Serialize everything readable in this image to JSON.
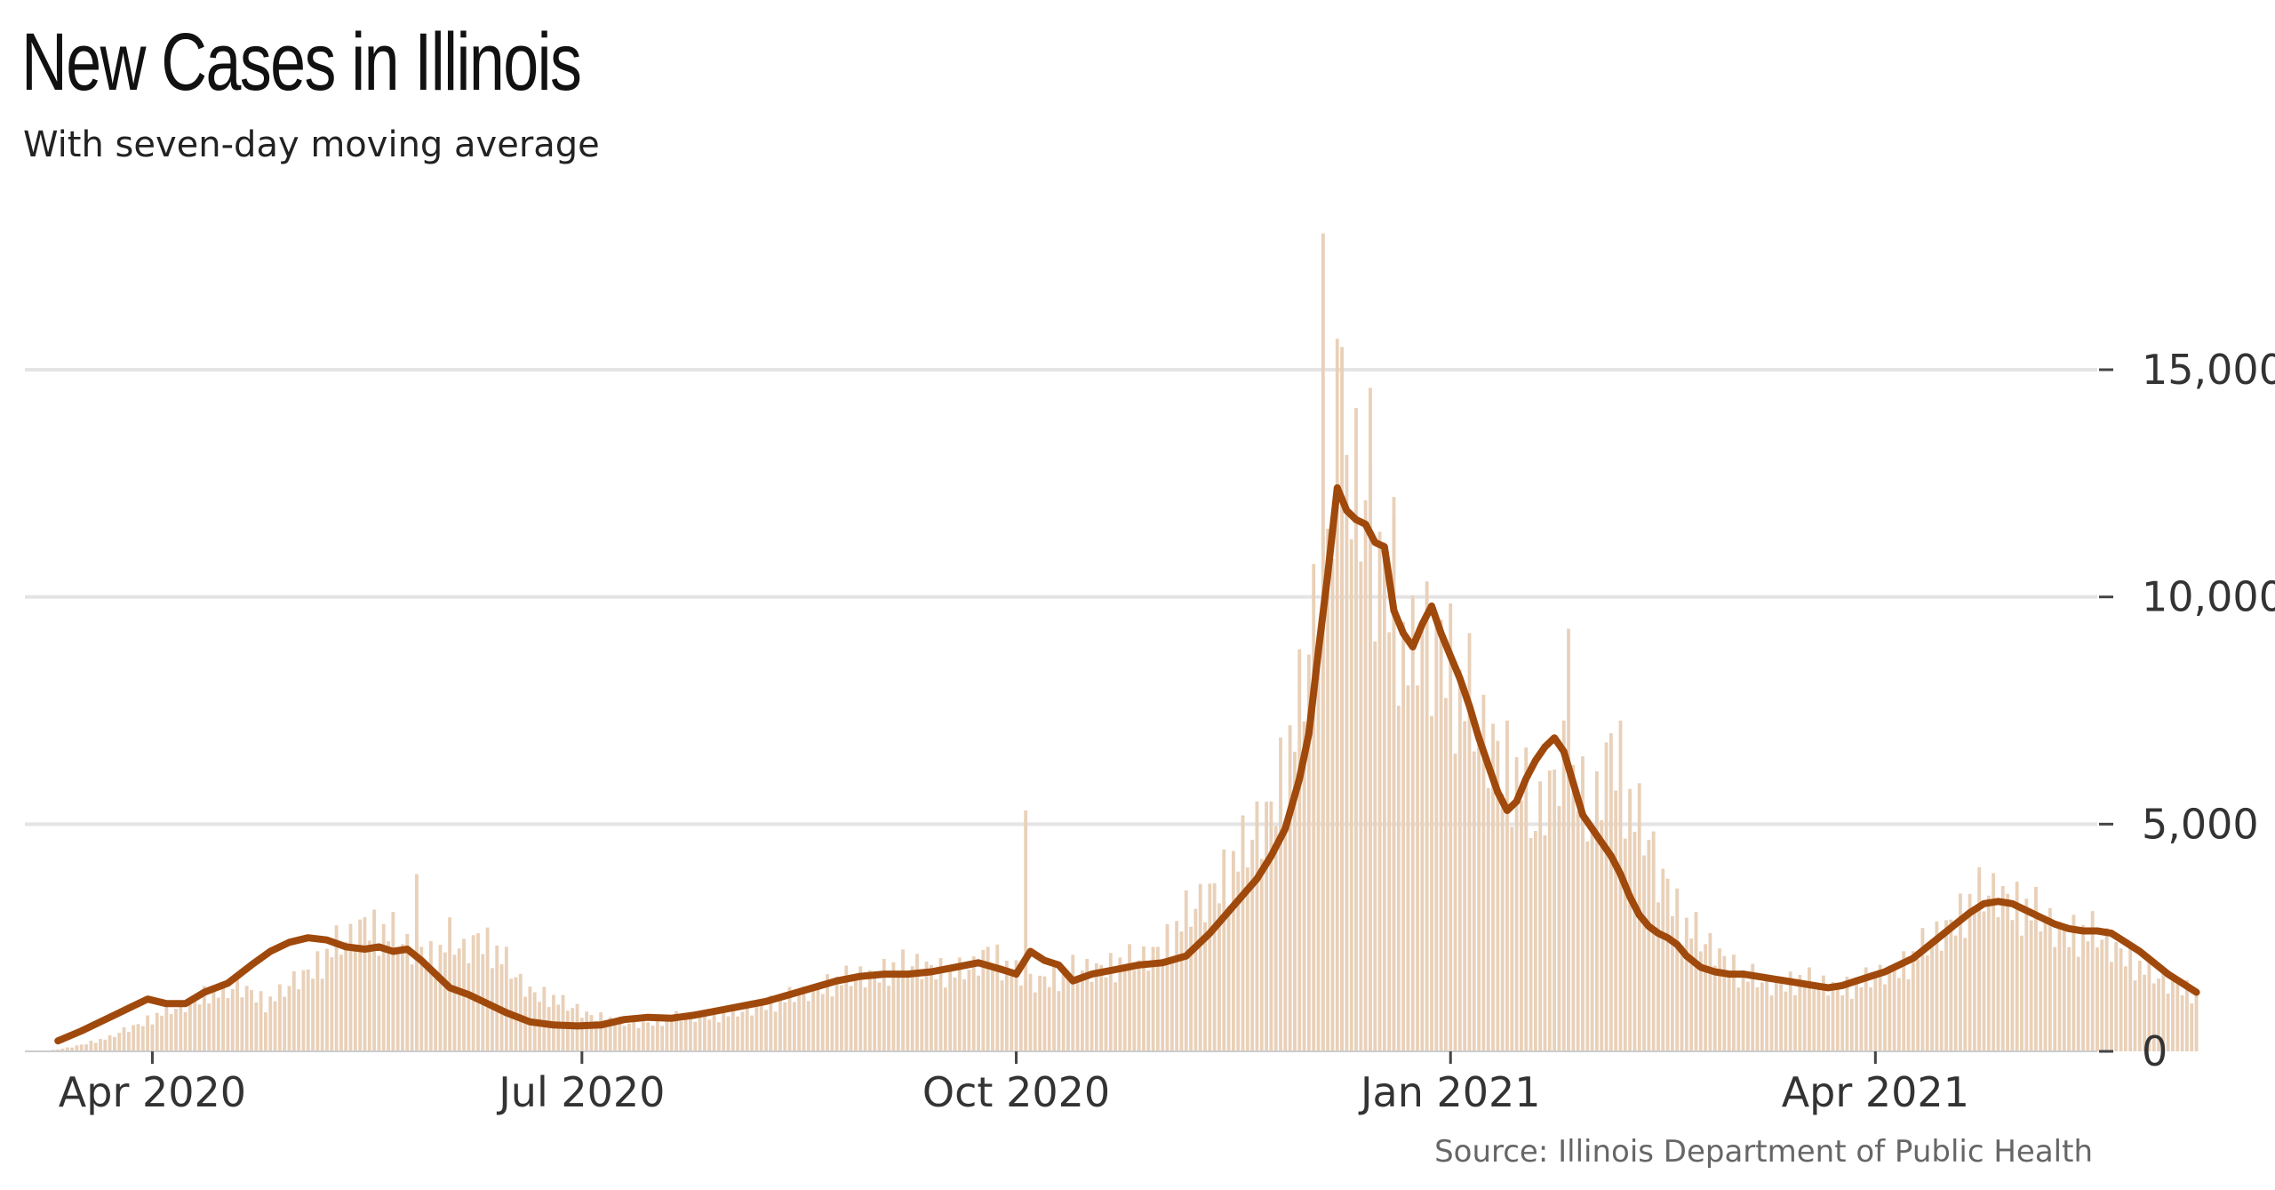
{
  "title": "New Cases in Illinois",
  "subtitle": "With seven-day moving average",
  "source": "Source: Illinois Department of Public Health",
  "colors": {
    "bars": "#e9d0b8",
    "line": "#a0490c",
    "grid": "#e4e4e4",
    "text": "#333333"
  },
  "chart_data": {
    "type": "bar",
    "x_axis": {
      "start": "2020-03-05",
      "end": "2021-05-18",
      "ticks": [
        {
          "date": "2020-04-01",
          "label": "Apr 2020"
        },
        {
          "date": "2020-07-01",
          "label": "Jul 2020"
        },
        {
          "date": "2020-10-01",
          "label": "Oct 2020"
        },
        {
          "date": "2021-01-01",
          "label": "Jan 2021"
        },
        {
          "date": "2021-04-01",
          "label": "Apr 2021"
        }
      ]
    },
    "y_axis": {
      "position": "right",
      "ylim": [
        0,
        18000
      ],
      "ticks": [
        0,
        5000,
        10000,
        15000
      ],
      "tick_labels": [
        "0",
        "5,000",
        "10,000",
        "15,000"
      ]
    },
    "grid": true,
    "series": [
      {
        "kind": "bars",
        "values": [
          [
            5,
            10
          ],
          [
            9,
            80
          ],
          [
            12,
            150
          ],
          [
            15,
            240
          ],
          [
            18,
            300
          ],
          [
            21,
            480
          ],
          [
            24,
            600
          ],
          [
            27,
            760
          ],
          [
            30,
            900
          ],
          [
            33,
            1000
          ],
          [
            36,
            1150
          ],
          [
            39,
            1350
          ],
          [
            42,
            1250
          ],
          [
            45,
            1500
          ],
          [
            48,
            1350
          ],
          [
            51,
            1100
          ],
          [
            54,
            1250
          ],
          [
            57,
            1600
          ],
          [
            60,
            1800
          ],
          [
            63,
            2050
          ],
          [
            66,
            2350
          ],
          [
            69,
            2550
          ],
          [
            72,
            2950
          ],
          [
            75,
            2700
          ],
          [
            78,
            2600
          ],
          [
            81,
            2350
          ],
          [
            84,
            2300
          ],
          [
            87,
            2100
          ],
          [
            90,
            2500
          ],
          [
            93,
            2250
          ],
          [
            96,
            2600
          ],
          [
            99,
            2350
          ],
          [
            102,
            1950
          ],
          [
            105,
            1550
          ],
          [
            108,
            1300
          ],
          [
            111,
            1250
          ],
          [
            114,
            1050
          ],
          [
            117,
            950
          ],
          [
            120,
            800
          ],
          [
            123,
            750
          ],
          [
            126,
            650
          ],
          [
            129,
            620
          ],
          [
            132,
            640
          ],
          [
            135,
            720
          ],
          [
            138,
            750
          ],
          [
            141,
            780
          ],
          [
            144,
            820
          ],
          [
            147,
            820
          ],
          [
            150,
            850
          ],
          [
            153,
            920
          ],
          [
            156,
            1050
          ],
          [
            159,
            1120
          ],
          [
            162,
            1200
          ],
          [
            165,
            1300
          ],
          [
            168,
            1450
          ],
          [
            171,
            1550
          ],
          [
            174,
            1600
          ],
          [
            177,
            1700
          ],
          [
            180,
            1750
          ],
          [
            183,
            1850
          ],
          [
            186,
            1900
          ],
          [
            189,
            1950
          ],
          [
            192,
            1900
          ],
          [
            195,
            1800
          ],
          [
            198,
            1750
          ],
          [
            201,
            1900
          ],
          [
            204,
            2300
          ],
          [
            207,
            2000
          ],
          [
            210,
            1700
          ],
          [
            213,
            1550
          ],
          [
            216,
            1650
          ],
          [
            219,
            1700
          ],
          [
            222,
            1800
          ],
          [
            225,
            1850
          ],
          [
            228,
            1900
          ],
          [
            231,
            1950
          ],
          [
            234,
            2000
          ],
          [
            237,
            2100
          ],
          [
            240,
            2300
          ],
          [
            243,
            2600
          ],
          [
            246,
            3000
          ],
          [
            249,
            3350
          ],
          [
            252,
            3700
          ],
          [
            255,
            4100
          ],
          [
            258,
            4400
          ],
          [
            261,
            5000
          ],
          [
            264,
            5500
          ],
          [
            267,
            6500
          ],
          [
            270,
            7500
          ],
          [
            272,
            9000
          ],
          [
            274,
            10500
          ],
          [
            276,
            11500
          ],
          [
            278,
            14000
          ],
          [
            280,
            12500
          ],
          [
            282,
            12000
          ],
          [
            284,
            12500
          ],
          [
            286,
            11000
          ],
          [
            288,
            11200
          ],
          [
            290,
            10500
          ],
          [
            292,
            9000
          ],
          [
            294,
            8500
          ],
          [
            296,
            9800
          ],
          [
            298,
            9000
          ],
          [
            300,
            9500
          ],
          [
            302,
            8800
          ],
          [
            304,
            8000
          ],
          [
            306,
            7800
          ],
          [
            308,
            7200
          ],
          [
            311,
            7000
          ],
          [
            314,
            6500
          ],
          [
            317,
            6000
          ],
          [
            320,
            5000
          ],
          [
            322,
            5800
          ],
          [
            324,
            6200
          ],
          [
            326,
            6500
          ],
          [
            328,
            6000
          ],
          [
            330,
            5500
          ],
          [
            332,
            5000
          ],
          [
            334,
            6200
          ],
          [
            336,
            7000
          ],
          [
            338,
            6500
          ],
          [
            340,
            5500
          ],
          [
            342,
            5000
          ],
          [
            344,
            4800
          ],
          [
            346,
            4000
          ],
          [
            348,
            3800
          ],
          [
            350,
            3200
          ],
          [
            352,
            2800
          ],
          [
            355,
            2500
          ],
          [
            358,
            2300
          ],
          [
            361,
            2000
          ],
          [
            364,
            1700
          ],
          [
            367,
            1600
          ],
          [
            370,
            1500
          ],
          [
            373,
            1550
          ],
          [
            376,
            1600
          ],
          [
            379,
            1550
          ],
          [
            382,
            1500
          ],
          [
            385,
            1450
          ],
          [
            388,
            1500
          ],
          [
            391,
            1600
          ],
          [
            394,
            1800
          ],
          [
            397,
            1900
          ],
          [
            400,
            2100
          ],
          [
            403,
            2400
          ],
          [
            406,
            2700
          ],
          [
            409,
            3000
          ],
          [
            412,
            3300
          ],
          [
            415,
            3500
          ],
          [
            418,
            3600
          ],
          [
            421,
            3400
          ],
          [
            424,
            3200
          ],
          [
            427,
            3000
          ],
          [
            430,
            2800
          ],
          [
            433,
            2700
          ],
          [
            436,
            2650
          ],
          [
            439,
            2600
          ],
          [
            442,
            2400
          ],
          [
            445,
            2200
          ],
          [
            448,
            1900
          ],
          [
            451,
            1700
          ],
          [
            454,
            1550
          ],
          [
            457,
            1450
          ],
          [
            460,
            1300
          ]
        ]
      },
      {
        "kind": "line",
        "values": [
          [
            7,
            230
          ],
          [
            12,
            450
          ],
          [
            17,
            700
          ],
          [
            22,
            950
          ],
          [
            26,
            1150
          ],
          [
            30,
            1050
          ],
          [
            34,
            1050
          ],
          [
            38,
            1300
          ],
          [
            43,
            1500
          ],
          [
            48,
            1900
          ],
          [
            52,
            2200
          ],
          [
            56,
            2400
          ],
          [
            60,
            2500
          ],
          [
            64,
            2450
          ],
          [
            68,
            2300
          ],
          [
            72,
            2250
          ],
          [
            75,
            2300
          ],
          [
            78,
            2200
          ],
          [
            81,
            2250
          ],
          [
            84,
            2000
          ],
          [
            87,
            1700
          ],
          [
            90,
            1400
          ],
          [
            94,
            1250
          ],
          [
            98,
            1050
          ],
          [
            102,
            850
          ],
          [
            107,
            650
          ],
          [
            112,
            580
          ],
          [
            117,
            560
          ],
          [
            122,
            580
          ],
          [
            127,
            700
          ],
          [
            132,
            750
          ],
          [
            137,
            730
          ],
          [
            142,
            800
          ],
          [
            147,
            900
          ],
          [
            152,
            1000
          ],
          [
            157,
            1100
          ],
          [
            162,
            1250
          ],
          [
            167,
            1400
          ],
          [
            172,
            1550
          ],
          [
            177,
            1650
          ],
          [
            182,
            1700
          ],
          [
            187,
            1700
          ],
          [
            192,
            1750
          ],
          [
            197,
            1850
          ],
          [
            202,
            1950
          ],
          [
            207,
            1800
          ],
          [
            210,
            1700
          ],
          [
            213,
            2200
          ],
          [
            216,
            2000
          ],
          [
            219,
            1900
          ],
          [
            222,
            1550
          ],
          [
            226,
            1700
          ],
          [
            231,
            1800
          ],
          [
            236,
            1900
          ],
          [
            241,
            1950
          ],
          [
            246,
            2100
          ],
          [
            251,
            2600
          ],
          [
            256,
            3200
          ],
          [
            261,
            3800
          ],
          [
            264,
            4300
          ],
          [
            267,
            4900
          ],
          [
            270,
            6000
          ],
          [
            272,
            7000
          ],
          [
            274,
            8800
          ],
          [
            276,
            10500
          ],
          [
            278,
            12400
          ],
          [
            280,
            11900
          ],
          [
            282,
            11700
          ],
          [
            284,
            11600
          ],
          [
            286,
            11200
          ],
          [
            288,
            11100
          ],
          [
            290,
            9700
          ],
          [
            292,
            9200
          ],
          [
            294,
            8900
          ],
          [
            296,
            9400
          ],
          [
            298,
            9800
          ],
          [
            300,
            9200
          ],
          [
            302,
            8700
          ],
          [
            304,
            8200
          ],
          [
            306,
            7600
          ],
          [
            308,
            6900
          ],
          [
            310,
            6300
          ],
          [
            312,
            5700
          ],
          [
            314,
            5300
          ],
          [
            316,
            5500
          ],
          [
            318,
            6000
          ],
          [
            320,
            6400
          ],
          [
            322,
            6700
          ],
          [
            324,
            6900
          ],
          [
            326,
            6600
          ],
          [
            328,
            5900
          ],
          [
            330,
            5200
          ],
          [
            332,
            4900
          ],
          [
            334,
            4600
          ],
          [
            336,
            4300
          ],
          [
            338,
            3900
          ],
          [
            340,
            3400
          ],
          [
            342,
            3000
          ],
          [
            344,
            2750
          ],
          [
            346,
            2600
          ],
          [
            348,
            2500
          ],
          [
            350,
            2350
          ],
          [
            352,
            2100
          ],
          [
            355,
            1850
          ],
          [
            358,
            1750
          ],
          [
            361,
            1700
          ],
          [
            364,
            1700
          ],
          [
            367,
            1650
          ],
          [
            370,
            1600
          ],
          [
            373,
            1550
          ],
          [
            376,
            1500
          ],
          [
            379,
            1450
          ],
          [
            382,
            1400
          ],
          [
            385,
            1450
          ],
          [
            388,
            1550
          ],
          [
            391,
            1650
          ],
          [
            394,
            1750
          ],
          [
            397,
            1900
          ],
          [
            400,
            2050
          ],
          [
            403,
            2300
          ],
          [
            406,
            2550
          ],
          [
            409,
            2800
          ],
          [
            412,
            3050
          ],
          [
            415,
            3250
          ],
          [
            418,
            3300
          ],
          [
            421,
            3250
          ],
          [
            424,
            3100
          ],
          [
            427,
            2950
          ],
          [
            430,
            2800
          ],
          [
            433,
            2700
          ],
          [
            436,
            2650
          ],
          [
            439,
            2650
          ],
          [
            442,
            2600
          ],
          [
            445,
            2400
          ],
          [
            448,
            2200
          ],
          [
            451,
            1950
          ],
          [
            454,
            1700
          ],
          [
            457,
            1500
          ],
          [
            460,
            1300
          ]
        ]
      }
    ]
  }
}
